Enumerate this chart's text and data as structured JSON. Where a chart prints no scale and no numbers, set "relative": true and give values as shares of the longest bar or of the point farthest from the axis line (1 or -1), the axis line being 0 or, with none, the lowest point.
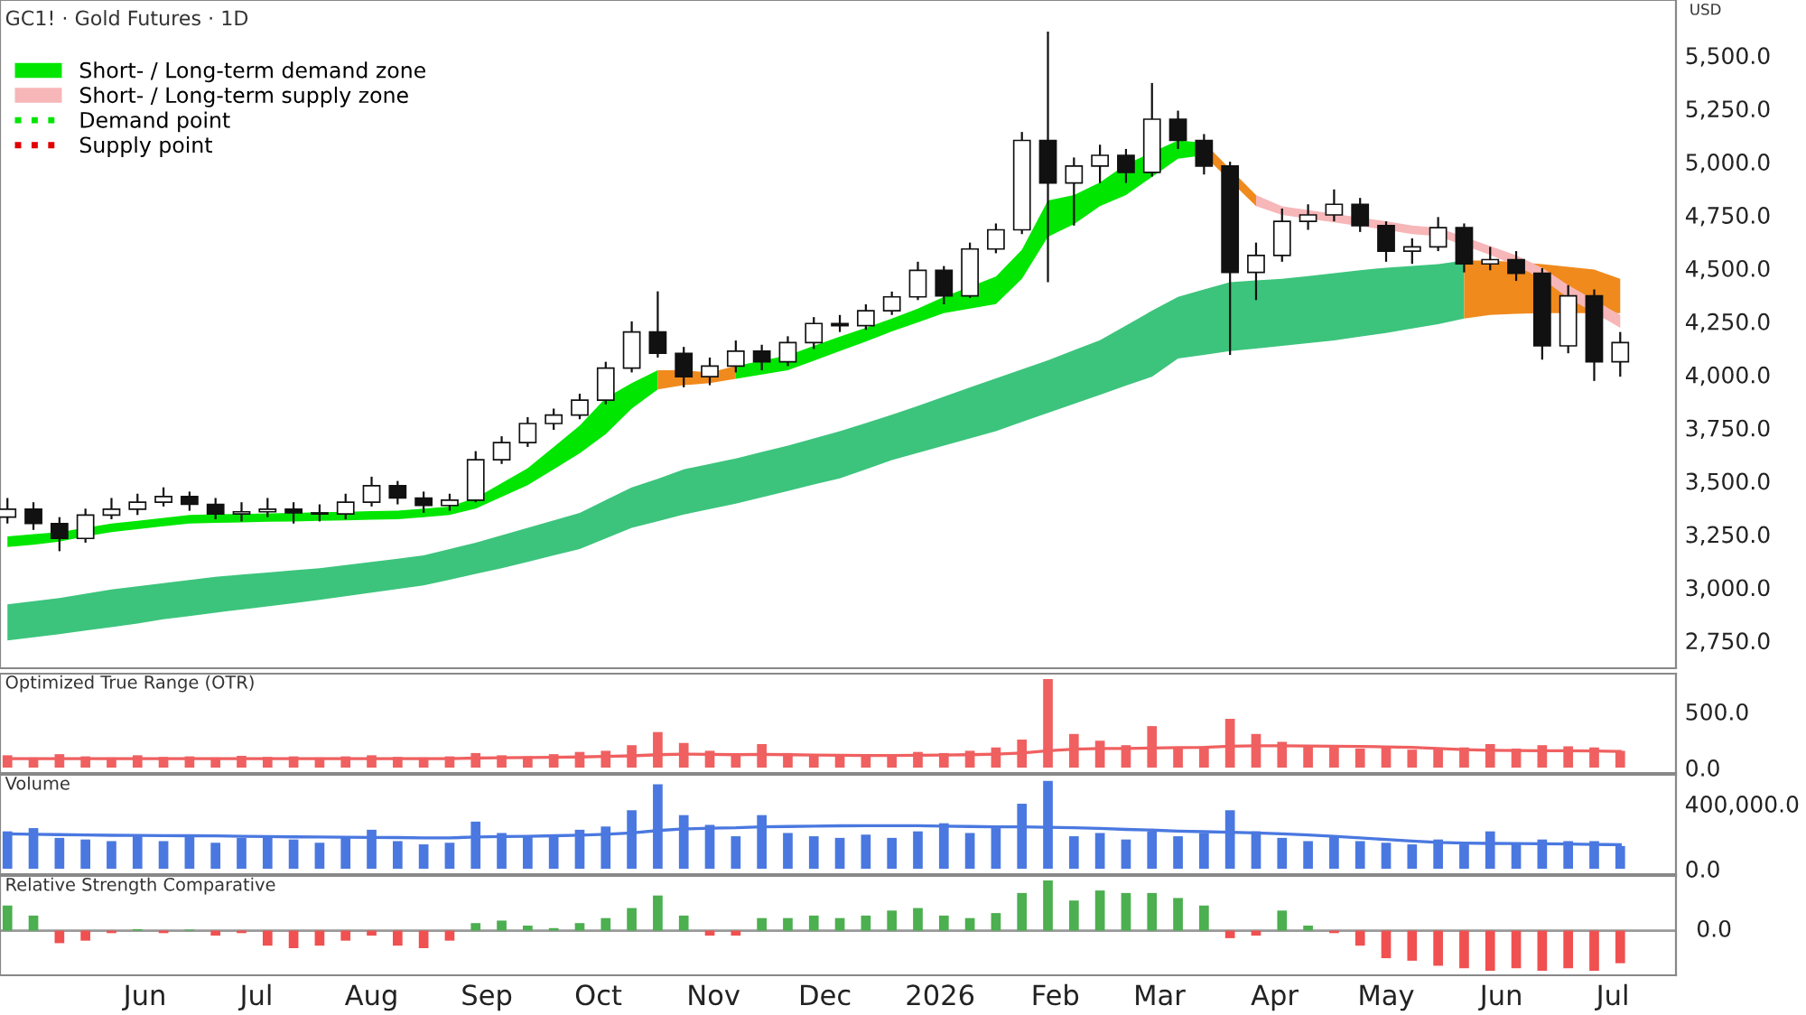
{
  "chart_data": [
    {
      "type": "candlestick",
      "title": "GC1! · Gold Futures · 1D",
      "ylabel": "USD",
      "legend": "top left",
      "tick_labels": "y",
      "x": [
        "2025-04-25",
        "2025-05-02",
        "2025-05-09",
        "2025-05-16",
        "2025-05-23",
        "2025-05-30",
        "2025-06-06",
        "2025-06-13",
        "2025-06-20",
        "2025-06-27",
        "2025-07-04",
        "2025-07-11",
        "2025-07-18",
        "2025-07-25",
        "2025-08-01",
        "2025-08-08",
        "2025-08-15",
        "2025-08-22",
        "2025-08-29",
        "2025-09-05",
        "2025-09-12",
        "2025-09-19",
        "2025-09-26",
        "2025-10-03",
        "2025-10-10",
        "2025-10-17",
        "2025-10-24",
        "2025-10-31",
        "2025-11-07",
        "2025-11-14",
        "2025-11-21",
        "2025-11-28",
        "2025-12-05",
        "2025-12-12",
        "2025-12-19",
        "2025-12-26",
        "2026-01-02",
        "2026-01-09",
        "2026-01-16",
        "2026-01-23",
        "2026-01-30",
        "2026-02-06",
        "2026-02-13",
        "2026-02-20",
        "2026-02-27",
        "2026-03-06",
        "2026-03-13",
        "2026-03-20",
        "2026-03-27",
        "2026-04-03",
        "2026-04-10",
        "2026-04-17",
        "2026-04-24",
        "2026-05-01",
        "2026-05-08",
        "2026-05-15",
        "2026-05-22",
        "2026-05-29",
        "2026-06-05",
        "2026-06-12",
        "2026-06-19",
        "2026-06-26",
        "2026-07-03"
      ],
      "ohlc": [
        [
          3330,
          3420,
          3300,
          3367
        ],
        [
          3367,
          3400,
          3270,
          3300
        ],
        [
          3300,
          3330,
          3170,
          3230
        ],
        [
          3230,
          3370,
          3210,
          3340
        ],
        [
          3340,
          3420,
          3320,
          3367
        ],
        [
          3367,
          3440,
          3340,
          3400
        ],
        [
          3400,
          3470,
          3380,
          3427
        ],
        [
          3427,
          3450,
          3360,
          3390
        ],
        [
          3390,
          3420,
          3320,
          3345
        ],
        [
          3345,
          3400,
          3310,
          3355
        ],
        [
          3355,
          3420,
          3330,
          3367
        ],
        [
          3367,
          3400,
          3300,
          3350
        ],
        [
          3350,
          3390,
          3310,
          3345
        ],
        [
          3345,
          3440,
          3320,
          3400
        ],
        [
          3400,
          3520,
          3380,
          3478
        ],
        [
          3478,
          3500,
          3390,
          3420
        ],
        [
          3420,
          3450,
          3350,
          3385
        ],
        [
          3385,
          3440,
          3360,
          3410
        ],
        [
          3410,
          3640,
          3400,
          3600
        ],
        [
          3600,
          3710,
          3580,
          3680
        ],
        [
          3680,
          3800,
          3660,
          3770
        ],
        [
          3770,
          3840,
          3740,
          3810
        ],
        [
          3810,
          3910,
          3790,
          3880
        ],
        [
          3880,
          4060,
          3860,
          4030
        ],
        [
          4030,
          4250,
          4010,
          4200
        ],
        [
          4200,
          4391,
          4080,
          4100
        ],
        [
          4100,
          4130,
          3940,
          3990
        ],
        [
          3990,
          4080,
          3950,
          4040
        ],
        [
          4040,
          4160,
          4010,
          4110
        ],
        [
          4110,
          4140,
          4020,
          4060
        ],
        [
          4060,
          4180,
          4040,
          4150
        ],
        [
          4150,
          4270,
          4120,
          4240
        ],
        [
          4240,
          4280,
          4200,
          4230
        ],
        [
          4230,
          4330,
          4210,
          4300
        ],
        [
          4300,
          4390,
          4280,
          4365
        ],
        [
          4365,
          4530,
          4350,
          4490
        ],
        [
          4490,
          4510,
          4330,
          4370
        ],
        [
          4370,
          4620,
          4360,
          4590
        ],
        [
          4590,
          4710,
          4570,
          4680
        ],
        [
          4680,
          5140,
          4660,
          5100
        ],
        [
          5100,
          5611,
          4434,
          4900
        ],
        [
          4900,
          5020,
          4700,
          4980
        ],
        [
          4980,
          5080,
          4900,
          5030
        ],
        [
          5030,
          5060,
          4900,
          4950
        ],
        [
          4950,
          5370,
          4930,
          5200
        ],
        [
          5200,
          5240,
          5060,
          5100
        ],
        [
          5100,
          5130,
          4940,
          4980
        ],
        [
          4980,
          5000,
          4092,
          4480
        ],
        [
          4480,
          4620,
          4350,
          4560
        ],
        [
          4560,
          4780,
          4530,
          4720
        ],
        [
          4720,
          4800,
          4680,
          4750
        ],
        [
          4750,
          4870,
          4720,
          4800
        ],
        [
          4800,
          4830,
          4670,
          4700
        ],
        [
          4700,
          4720,
          4530,
          4580
        ],
        [
          4580,
          4640,
          4520,
          4600
        ],
        [
          4600,
          4740,
          4580,
          4690
        ],
        [
          4690,
          4710,
          4480,
          4520
        ],
        [
          4520,
          4600,
          4490,
          4540
        ],
        [
          4540,
          4580,
          4440,
          4476
        ],
        [
          4476,
          4500,
          4070,
          4135
        ],
        [
          4135,
          4420,
          4100,
          4370
        ],
        [
          4370,
          4400,
          3970,
          4060
        ],
        [
          4060,
          4200,
          3990,
          4150
        ]
      ],
      "series": [
        {
          "type": "line",
          "color": "#3cc47c",
          "values": [
            null,
            null,
            null,
            null,
            null,
            null,
            null,
            null,
            null,
            null,
            null,
            null,
            null,
            null,
            null,
            null,
            null,
            null,
            null,
            null,
            null,
            null,
            null,
            null,
            null,
            null,
            null,
            null,
            null,
            null,
            null,
            null,
            null,
            null,
            null,
            null,
            null,
            null,
            null,
            null,
            null,
            null,
            null,
            null,
            null,
            null,
            null,
            null,
            null,
            null,
            null,
            null,
            null,
            null,
            null,
            null,
            null
          ],
          "x": [
            "2025-04-25",
            "2025-05-02",
            "2025-05-09",
            "2025-05-16",
            "2025-05-23",
            "2025-05-30",
            "2025-06-06",
            "2025-06-13",
            "2025-06-20",
            "2025-06-27",
            "2025-07-04",
            "2025-07-11",
            "2025-07-18",
            "2025-07-25",
            "2025-08-01",
            "2025-08-08",
            "2025-08-15",
            "2025-08-22",
            "2025-08-29",
            "2025-09-05",
            "2025-09-12",
            "2025-09-19",
            "2025-09-26",
            "2025-10-03",
            "2025-10-10",
            "2025-10-17",
            "2025-10-24",
            "2025-10-31",
            "2025-11-07",
            "2025-11-14",
            "2025-11-21",
            "2025-11-28",
            "2025-12-05",
            "2025-12-12",
            "2025-12-19",
            "2025-12-26",
            "2026-01-02",
            "2026-01-09",
            "2026-01-16",
            "2026-01-23",
            "2026-01-30",
            "2026-02-06",
            "2026-02-13",
            "2026-02-20",
            "2026-02-27",
            "2026-03-06",
            "2026-03-13",
            "2026-03-20",
            "2026-03-27",
            "2026-04-03",
            "2026-04-10",
            "2026-04-17",
            "2026-04-24",
            "2026-05-01",
            "2026-05-08",
            "2026-05-15",
            "2026-05-22"
          ],
          "upper": [
            2920,
            2935,
            2950,
            2970,
            2990,
            3005,
            3020,
            3035,
            3050,
            3060,
            3070,
            3080,
            3090,
            3105,
            3120,
            3135,
            3150,
            3180,
            3210,
            3245,
            3280,
            3315,
            3350,
            3410,
            3470,
            3510,
            3555,
            3580,
            3606,
            3636,
            3666,
            3700,
            3734,
            3772,
            3811,
            3853,
            3896,
            3940,
            3982,
            4025,
            4067,
            4115,
            4161,
            4230,
            4300,
            4365,
            4400,
            4434,
            4442,
            4450,
            4463,
            4476,
            4490,
            4502,
            4510,
            4519,
            4536
          ],
          "lower": [
            2750,
            2765,
            2780,
            2797,
            2813,
            2830,
            2850,
            2865,
            2881,
            2896,
            2911,
            2926,
            2941,
            2958,
            2975,
            2992,
            3009,
            3036,
            3063,
            3090,
            3120,
            3150,
            3180,
            3230,
            3280,
            3311,
            3342,
            3368,
            3393,
            3423,
            3453,
            3483,
            3512,
            3555,
            3598,
            3632,
            3666,
            3700,
            3734,
            3777,
            3820,
            3862,
            3905,
            3948,
            3990,
            4075,
            4092,
            4110,
            4122,
            4135,
            4148,
            4160,
            4178,
            4195,
            4216,
            4237,
            4263
          ]
        },
        {
          "type": "line",
          "color": "#f08a1c",
          "values": [
            null,
            null,
            null,
            null,
            null,
            null,
            null
          ],
          "x": [
            "2026-05-22",
            "2026-05-29",
            "2026-06-05",
            "2026-06-12",
            "2026-06-19",
            "2026-06-26",
            "2026-07-03"
          ],
          "upper": [
            4536,
            4536,
            4528,
            4519,
            4506,
            4493,
            4450
          ],
          "lower": [
            4263,
            4280,
            4285,
            4289,
            4289,
            4289,
            4289
          ]
        },
        {
          "type": "line",
          "name": "Short- / Long-term demand zone",
          "color": "#00e600",
          "values": [
            null,
            null,
            null,
            null,
            null,
            null,
            null,
            null,
            null,
            null,
            null,
            null,
            null,
            null,
            null,
            null,
            null,
            null,
            null,
            null,
            null,
            null,
            null,
            null,
            null,
            null
          ],
          "x": [
            "2025-04-25",
            "2025-05-02",
            "2025-05-09",
            "2025-05-16",
            "2025-05-23",
            "2025-05-30",
            "2025-06-06",
            "2025-06-13",
            "2025-06-20",
            "2025-06-27",
            "2025-07-04",
            "2025-07-11",
            "2025-07-18",
            "2025-07-25",
            "2025-08-01",
            "2025-08-08",
            "2025-08-15",
            "2025-08-22",
            "2025-08-29",
            "2025-09-05",
            "2025-09-12",
            "2025-09-19",
            "2025-09-26",
            "2025-10-03",
            "2025-10-10",
            "2025-10-17"
          ],
          "upper": [
            3240,
            3250,
            3260,
            3280,
            3300,
            3313,
            3327,
            3340,
            3343,
            3345,
            3348,
            3350,
            3353,
            3355,
            3358,
            3360,
            3370,
            3380,
            3420,
            3490,
            3560,
            3660,
            3760,
            3890,
            3960,
            4020
          ],
          "lower": [
            3190,
            3200,
            3215,
            3240,
            3260,
            3273,
            3287,
            3300,
            3303,
            3305,
            3308,
            3310,
            3313,
            3315,
            3318,
            3320,
            3330,
            3340,
            3370,
            3425,
            3480,
            3555,
            3630,
            3720,
            3840,
            3930
          ]
        },
        {
          "type": "line",
          "color": "#f08a1c",
          "values": [
            null,
            null,
            null,
            null
          ],
          "x": [
            "2025-10-17",
            "2025-10-24",
            "2025-10-31",
            "2025-11-07"
          ],
          "upper": [
            4020,
            4020,
            4010,
            4040
          ],
          "lower": [
            3930,
            3950,
            3960,
            3980
          ]
        },
        {
          "type": "line",
          "color": "#00e600",
          "values": [
            null,
            null,
            null,
            null,
            null,
            null,
            null,
            null,
            null,
            null,
            null,
            null,
            null,
            null,
            null,
            null,
            null,
            null,
            null
          ],
          "x": [
            "2025-11-07",
            "2025-11-14",
            "2025-11-21",
            "2025-11-28",
            "2025-12-05",
            "2025-12-12",
            "2025-12-19",
            "2025-12-26",
            "2026-01-02",
            "2026-01-09",
            "2026-01-16",
            "2026-01-23",
            "2026-01-30",
            "2026-02-06",
            "2026-02-13",
            "2026-02-20",
            "2026-02-27",
            "2026-03-06",
            "2026-03-13"
          ],
          "upper": [
            4040,
            4065,
            4090,
            4135,
            4178,
            4220,
            4263,
            4310,
            4365,
            null,
            4460,
            4587,
            4818,
            4843,
            4903,
            4988,
            null,
            5100,
            5090
          ],
          "lower": [
            3980,
            4000,
            4020,
            4065,
            4110,
            4155,
            4203,
            4245,
            4289,
            null,
            4331,
            4450,
            4647,
            4707,
            4792,
            4843,
            null,
            5014,
            5030
          ]
        },
        {
          "type": "line",
          "color": "#f08a1c",
          "values": [
            null,
            null,
            null
          ],
          "x": [
            "2026-03-13",
            "2026-03-20",
            "2026-03-27"
          ],
          "upper": [
            5090,
            null,
            4843
          ],
          "lower": [
            5030,
            null,
            4792
          ]
        },
        {
          "type": "line",
          "name": "Short- / Long-term supply zone",
          "color": "#f7b6b8",
          "values": [
            null,
            null,
            null,
            null,
            null,
            null,
            null,
            null,
            null,
            null,
            null,
            null,
            null,
            null,
            null
          ],
          "x": [
            "2026-03-27",
            "2026-04-03",
            "2026-04-10",
            "2026-04-17",
            "2026-04-24",
            "2026-05-01",
            "2026-05-08",
            "2026-05-15",
            "2026-05-22",
            "2026-05-29",
            "2026-06-05",
            "2026-06-12",
            "2026-06-19",
            "2026-06-26",
            "2026-07-03"
          ],
          "upper": [
            4843,
            4790,
            null,
            null,
            null,
            4720,
            4700,
            4690,
            null,
            4604,
            4560,
            4502,
            4420,
            null,
            4280
          ],
          "lower": [
            4792,
            4750,
            null,
            null,
            null,
            4680,
            4660,
            4650,
            null,
            4562,
            4510,
            4450,
            4360,
            null,
            4220
          ]
        },
        {
          "type": "line",
          "name": "Demand point",
          "color": "#00e600",
          "line_style": "dotted",
          "values": [
            null,
            null,
            null,
            null,
            null,
            null,
            null,
            null,
            null,
            null,
            null,
            null,
            null,
            null,
            null,
            null,
            null,
            null,
            null,
            null,
            null,
            null,
            null,
            null,
            null,
            null,
            null,
            null,
            null,
            null,
            null,
            null,
            null,
            null,
            null,
            null,
            null,
            null,
            null,
            null,
            null,
            null,
            null,
            null,
            null,
            null,
            null,
            null,
            null,
            null,
            null,
            null,
            null,
            null,
            null,
            null,
            null,
            null,
            null,
            null,
            null,
            null,
            null
          ]
        },
        {
          "type": "line",
          "name": "Supply point",
          "color": "#e00000",
          "line_style": "dotted",
          "values": [
            null,
            null,
            null,
            null,
            null,
            null,
            null,
            null,
            null,
            null,
            null,
            null,
            null,
            null,
            null,
            null,
            null,
            null,
            null,
            null,
            null,
            null,
            null,
            null,
            null,
            null,
            null,
            null,
            null,
            null,
            null,
            null,
            null,
            null,
            null,
            null,
            null,
            null,
            null,
            null,
            null,
            null,
            null,
            null,
            null,
            null,
            null,
            null,
            null,
            null,
            null,
            null,
            null,
            null,
            null,
            null,
            null,
            null,
            null,
            null,
            null,
            null,
            null
          ]
        }
      ],
      "xlim": [
        "2025-04-23",
        "2026-07-18"
      ],
      "ylim": [
        2620,
        5760
      ],
      "yticks": [
        {
          "value": 2750,
          "label": "2,750.0"
        },
        {
          "value": 3000,
          "label": "3,000.0"
        },
        {
          "value": 3250,
          "label": "3,250.0"
        },
        {
          "value": 3500,
          "label": "3,500.0"
        },
        {
          "value": 3750,
          "label": "3,750.0"
        },
        {
          "value": 4000,
          "label": "4,000.0"
        },
        {
          "value": 4250,
          "label": "4,250.0"
        },
        {
          "value": 4500,
          "label": "4,500.0"
        },
        {
          "value": 4750,
          "label": "4,750.0"
        },
        {
          "value": 5000,
          "label": "5,000.0"
        },
        {
          "value": 5250,
          "label": "5,250.0"
        },
        {
          "value": 5500,
          "label": "5,500.0"
        }
      ]
    },
    {
      "type": "bar",
      "title": "Optimized True Range (OTR)",
      "tick_labels": "y",
      "x": [
        "2025-04-25",
        "2025-05-02",
        "2025-05-09",
        "2025-05-16",
        "2025-05-23",
        "2025-05-30",
        "2025-06-06",
        "2025-06-13",
        "2025-06-20",
        "2025-06-27",
        "2025-07-04",
        "2025-07-11",
        "2025-07-18",
        "2025-07-25",
        "2025-08-01",
        "2025-08-08",
        "2025-08-15",
        "2025-08-22",
        "2025-08-29",
        "2025-09-05",
        "2025-09-12",
        "2025-09-19",
        "2025-09-26",
        "2025-10-03",
        "2025-10-10",
        "2025-10-17",
        "2025-10-24",
        "2025-10-31",
        "2025-11-07",
        "2025-11-14",
        "2025-11-21",
        "2025-11-28",
        "2025-12-05",
        "2025-12-12",
        "2025-12-19",
        "2025-12-26",
        "2026-01-02",
        "2026-01-09",
        "2026-01-16",
        "2026-01-23",
        "2026-01-30",
        "2026-02-06",
        "2026-02-13",
        "2026-02-20",
        "2026-02-27",
        "2026-03-06",
        "2026-03-13",
        "2026-03-20",
        "2026-03-27",
        "2026-04-03",
        "2026-04-10",
        "2026-04-17",
        "2026-04-24",
        "2026-05-01",
        "2026-05-08",
        "2026-05-15",
        "2026-05-22",
        "2026-05-29",
        "2026-06-05",
        "2026-06-12",
        "2026-06-19",
        "2026-06-26",
        "2026-07-03"
      ],
      "series": [
        {
          "type": "bar",
          "color": "#f06060",
          "values": [
            110,
            90,
            120,
            100,
            90,
            110,
            95,
            100,
            90,
            105,
            95,
            100,
            90,
            100,
            110,
            95,
            90,
            100,
            130,
            110,
            100,
            120,
            140,
            150,
            200,
            317,
            220,
            150,
            120,
            210,
            130,
            110,
            120,
            100,
            120,
            140,
            130,
            150,
            180,
            250,
            790,
            300,
            240,
            200,
            370,
            180,
            190,
            435,
            300,
            230,
            200,
            180,
            170,
            190,
            160,
            170,
            180,
            210,
            170,
            200,
            190,
            180,
            150
          ]
        },
        {
          "type": "line",
          "color": "#f06060",
          "values": [
            80,
            80,
            80,
            80,
            80,
            80,
            80,
            80,
            80,
            80,
            80,
            80,
            80,
            80,
            80,
            80,
            80,
            80,
            85,
            88,
            90,
            92,
            95,
            100,
            105,
            115,
            120,
            118,
            115,
            118,
            115,
            112,
            110,
            108,
            108,
            110,
            112,
            115,
            120,
            130,
            150,
            165,
            170,
            170,
            175,
            178,
            180,
            190,
            195,
            195,
            192,
            190,
            188,
            185,
            180,
            170,
            160,
            155,
            152,
            150,
            150,
            148,
            145
          ]
        }
      ],
      "xlim": [
        "2025-04-23",
        "2026-07-18"
      ],
      "ylim": [
        -48,
        838
      ],
      "yticks": [
        {
          "value": 0,
          "label": "0.0"
        },
        {
          "value": 500,
          "label": "500.0"
        }
      ]
    },
    {
      "type": "bar",
      "title": "Volume",
      "tick_labels": "y",
      "x": [
        "2025-04-25",
        "2025-05-02",
        "2025-05-09",
        "2025-05-16",
        "2025-05-23",
        "2025-05-30",
        "2025-06-06",
        "2025-06-13",
        "2025-06-20",
        "2025-06-27",
        "2025-07-04",
        "2025-07-11",
        "2025-07-18",
        "2025-07-25",
        "2025-08-01",
        "2025-08-08",
        "2025-08-15",
        "2025-08-22",
        "2025-08-29",
        "2025-09-05",
        "2025-09-12",
        "2025-09-19",
        "2025-09-26",
        "2025-10-03",
        "2025-10-10",
        "2025-10-17",
        "2025-10-24",
        "2025-10-31",
        "2025-11-07",
        "2025-11-14",
        "2025-11-21",
        "2025-11-28",
        "2025-12-05",
        "2025-12-12",
        "2025-12-19",
        "2025-12-26",
        "2026-01-02",
        "2026-01-09",
        "2026-01-16",
        "2026-01-23",
        "2026-01-30",
        "2026-02-06",
        "2026-02-13",
        "2026-02-20",
        "2026-02-27",
        "2026-03-06",
        "2026-03-13",
        "2026-03-20",
        "2026-03-27",
        "2026-04-03",
        "2026-04-10",
        "2026-04-17",
        "2026-04-24",
        "2026-05-01",
        "2026-05-08",
        "2026-05-15",
        "2026-05-22",
        "2026-05-29",
        "2026-06-05",
        "2026-06-12",
        "2026-06-19",
        "2026-06-26",
        "2026-07-03"
      ],
      "series": [
        {
          "type": "bar",
          "color": "#4a78e0",
          "values": [
            230000,
            250000,
            190000,
            180000,
            170000,
            200000,
            170000,
            210000,
            160000,
            190000,
            200000,
            180000,
            160000,
            200000,
            240000,
            170000,
            150000,
            160000,
            290000,
            220000,
            200000,
            210000,
            240000,
            260000,
            360000,
            520000,
            330000,
            270000,
            200000,
            330000,
            220000,
            200000,
            190000,
            210000,
            190000,
            230000,
            280000,
            220000,
            250000,
            400000,
            540000,
            200000,
            220000,
            180000,
            230000,
            200000,
            220000,
            360000,
            230000,
            190000,
            170000,
            200000,
            170000,
            160000,
            150000,
            180000,
            150000,
            230000,
            160000,
            180000,
            170000,
            170000,
            140000
          ]
        },
        {
          "type": "line",
          "color": "#4a78e0",
          "values": [
            215000,
            212000,
            210000,
            208000,
            206000,
            205000,
            204000,
            203000,
            202000,
            200000,
            198000,
            196000,
            195000,
            194000,
            193000,
            192000,
            190000,
            190000,
            195000,
            198000,
            200000,
            203000,
            207000,
            212000,
            220000,
            235000,
            245000,
            250000,
            252000,
            258000,
            260000,
            262000,
            264000,
            265000,
            265000,
            265000,
            262000,
            260000,
            258000,
            258000,
            255000,
            252000,
            248000,
            242000,
            238000,
            232000,
            228000,
            225000,
            220000,
            215000,
            208000,
            200000,
            190000,
            180000,
            170000,
            162000,
            158000,
            156000,
            155000,
            154000,
            152000,
            150000,
            148000
          ]
        }
      ],
      "xlim": [
        "2025-04-23",
        "2026-07-18"
      ],
      "ylim": [
        -33000,
        578000
      ],
      "yticks": [
        {
          "value": 0,
          "label": "0.0"
        },
        {
          "value": 400000,
          "label": "400,000.0"
        }
      ]
    },
    {
      "type": "bar",
      "title": "Relative Strength Comparative",
      "relative": true,
      "tick_labels": "x",
      "x": [
        "2025-04-25",
        "2025-05-02",
        "2025-05-09",
        "2025-05-16",
        "2025-05-23",
        "2025-05-30",
        "2025-06-06",
        "2025-06-13",
        "2025-06-20",
        "2025-06-27",
        "2025-07-04",
        "2025-07-11",
        "2025-07-18",
        "2025-07-25",
        "2025-08-01",
        "2025-08-08",
        "2025-08-15",
        "2025-08-22",
        "2025-08-29",
        "2025-09-05",
        "2025-09-12",
        "2025-09-19",
        "2025-09-26",
        "2025-10-03",
        "2025-10-10",
        "2025-10-17",
        "2025-10-24",
        "2025-10-31",
        "2025-11-07",
        "2025-11-14",
        "2025-11-21",
        "2025-11-28",
        "2025-12-05",
        "2025-12-12",
        "2025-12-19",
        "2025-12-26",
        "2026-01-02",
        "2026-01-09",
        "2026-01-16",
        "2026-01-23",
        "2026-01-30",
        "2026-02-06",
        "2026-02-13",
        "2026-02-20",
        "2026-02-27",
        "2026-03-06",
        "2026-03-13",
        "2026-03-20",
        "2026-03-27",
        "2026-04-03",
        "2026-04-10",
        "2026-04-17",
        "2026-04-24",
        "2026-05-01",
        "2026-05-08",
        "2026-05-15",
        "2026-05-22",
        "2026-05-29",
        "2026-06-05",
        "2026-06-12",
        "2026-06-19",
        "2026-06-26",
        "2026-07-03"
      ],
      "values": [
        0.5,
        0.3,
        -0.25,
        -0.2,
        -0.05,
        0.03,
        -0.05,
        0.02,
        -0.1,
        -0.05,
        -0.3,
        -0.35,
        -0.3,
        -0.2,
        -0.1,
        -0.3,
        -0.35,
        -0.2,
        0.15,
        0.2,
        0.1,
        0.05,
        0.15,
        0.25,
        0.45,
        0.7,
        0.3,
        -0.1,
        -0.1,
        0.25,
        0.25,
        0.3,
        0.25,
        0.3,
        0.4,
        0.45,
        0.3,
        0.25,
        0.35,
        0.75,
        1,
        0.6,
        0.8,
        0.75,
        0.75,
        0.65,
        0.5,
        -0.15,
        -0.1,
        0.4,
        0.1,
        -0.05,
        -0.3,
        -0.55,
        -0.6,
        -0.7,
        -0.75,
        -0.8,
        -0.75,
        -0.8,
        -0.75,
        -0.8,
        -0.65
      ],
      "colors": [
        "#4caf50",
        "#4caf50",
        "#f05050",
        "#f05050",
        "#f05050",
        "#4caf50",
        "#f05050",
        "#4caf50",
        "#f05050",
        "#f05050",
        "#f05050",
        "#f05050",
        "#f05050",
        "#f05050",
        "#f05050",
        "#f05050",
        "#f05050",
        "#f05050",
        "#4caf50",
        "#4caf50",
        "#4caf50",
        "#4caf50",
        "#4caf50",
        "#4caf50",
        "#4caf50",
        "#4caf50",
        "#4caf50",
        "#f05050",
        "#f05050",
        "#4caf50",
        "#4caf50",
        "#4caf50",
        "#4caf50",
        "#4caf50",
        "#4caf50",
        "#4caf50",
        "#4caf50",
        "#4caf50",
        "#4caf50",
        "#4caf50",
        "#4caf50",
        "#4caf50",
        "#4caf50",
        "#4caf50",
        "#4caf50",
        "#4caf50",
        "#4caf50",
        "#f05050",
        "#f05050",
        "#4caf50",
        "#4caf50",
        "#f05050",
        "#f05050",
        "#f05050",
        "#f05050",
        "#f05050",
        "#f05050",
        "#f05050",
        "#f05050",
        "#f05050",
        "#f05050",
        "#f05050",
        "#f05050"
      ],
      "ref_lines": [
        {
          "axis": "y",
          "value": 0,
          "label": "0.0",
          "color": "#999999"
        }
      ],
      "xlim": [
        "2025-04-23",
        "2026-07-18"
      ],
      "xticks": [
        {
          "value": "2025-06-01",
          "label": "Jun"
        },
        {
          "value": "2025-07-01",
          "label": "Jul"
        },
        {
          "value": "2025-08-01",
          "label": "Aug"
        },
        {
          "value": "2025-09-01",
          "label": "Sep"
        },
        {
          "value": "2025-10-01",
          "label": "Oct"
        },
        {
          "value": "2025-11-01",
          "label": "Nov"
        },
        {
          "value": "2025-12-01",
          "label": "Dec"
        },
        {
          "value": "2026-01-01",
          "label": "2026"
        },
        {
          "value": "2026-02-01",
          "label": "Feb"
        },
        {
          "value": "2026-03-01",
          "label": "Mar"
        },
        {
          "value": "2026-04-01",
          "label": "Apr"
        },
        {
          "value": "2026-05-01",
          "label": "May"
        },
        {
          "value": "2026-06-01",
          "label": "Jun"
        },
        {
          "value": "2026-07-01",
          "label": "Jul"
        }
      ]
    }
  ]
}
